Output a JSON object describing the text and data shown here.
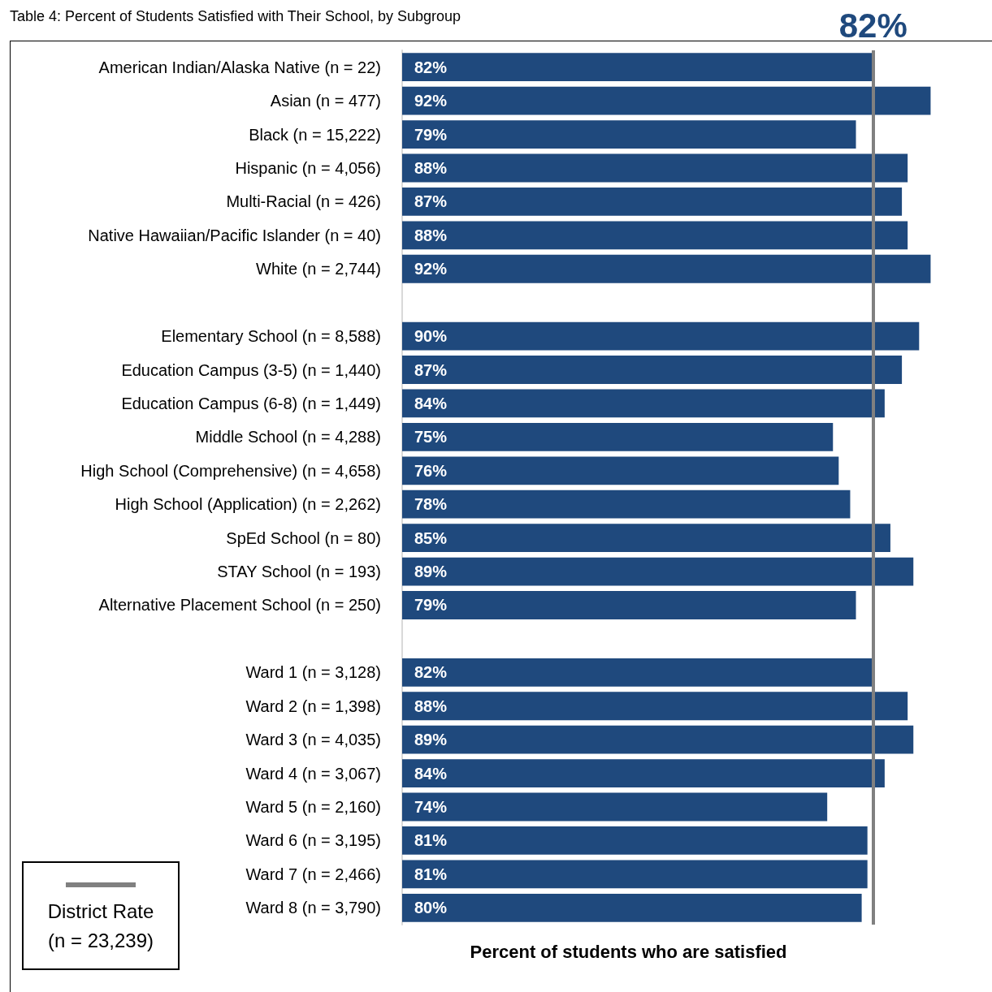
{
  "chart_data": {
    "type": "bar",
    "orientation": "horizontal",
    "title": "Table 4: Percent of Students Satisfied with Their School, by Subgroup",
    "annotations": [
      "District Rate (n = 23,239)"
    ],
    "xlabel": "Percent of students who are satisfied",
    "categories": [
      "American Indian/Alaska Native (n = 22)",
      "Asian (n = 477)",
      "Black (n = 15,222)",
      "Hispanic (n = 4,056)",
      "Multi-Racial (n = 426)",
      "Native Hawaiian/Pacific Islander (n = 40)",
      "White (n = 2,744)",
      null,
      "Elementary School (n = 8,588)",
      "Education Campus (3-5) (n = 1,440)",
      "Education Campus (6-8) (n = 1,449)",
      "Middle School (n = 4,288)",
      "High School (Comprehensive) (n = 4,658)",
      "High School (Application) (n = 2,262)",
      "SpEd School (n = 80)",
      "STAY School (n = 193)",
      "Alternative Placement School (n = 250)",
      null,
      "Ward 1 (n = 3,128)",
      "Ward 2 (n = 1,398)",
      "Ward 3 (n = 4,035)",
      "Ward 4 (n = 3,067)",
      "Ward 5 (n = 2,160)",
      "Ward 6 (n = 3,195)",
      "Ward 7 (n = 2,466)",
      "Ward 8 (n = 3,790)"
    ],
    "values": [
      82,
      92,
      79,
      88,
      87,
      88,
      92,
      null,
      90,
      87,
      84,
      75,
      76,
      78,
      85,
      89,
      79,
      null,
      82,
      88,
      89,
      84,
      74,
      81,
      81,
      80
    ],
    "value_labels": [
      "82%",
      "92%",
      "79%",
      "88%",
      "87%",
      "88%",
      "92%",
      null,
      "90%",
      "87%",
      "84%",
      "75%",
      "76%",
      "78%",
      "85%",
      "89%",
      "79%",
      null,
      "82%",
      "88%",
      "89%",
      "84%",
      "74%",
      "81%",
      "81%",
      "80%"
    ],
    "color": "#1f497d",
    "ref_lines": [
      {
        "axis": "x",
        "value": 82,
        "label": "82%",
        "color": "#808080"
      }
    ],
    "tick_labels": "y"
  }
}
